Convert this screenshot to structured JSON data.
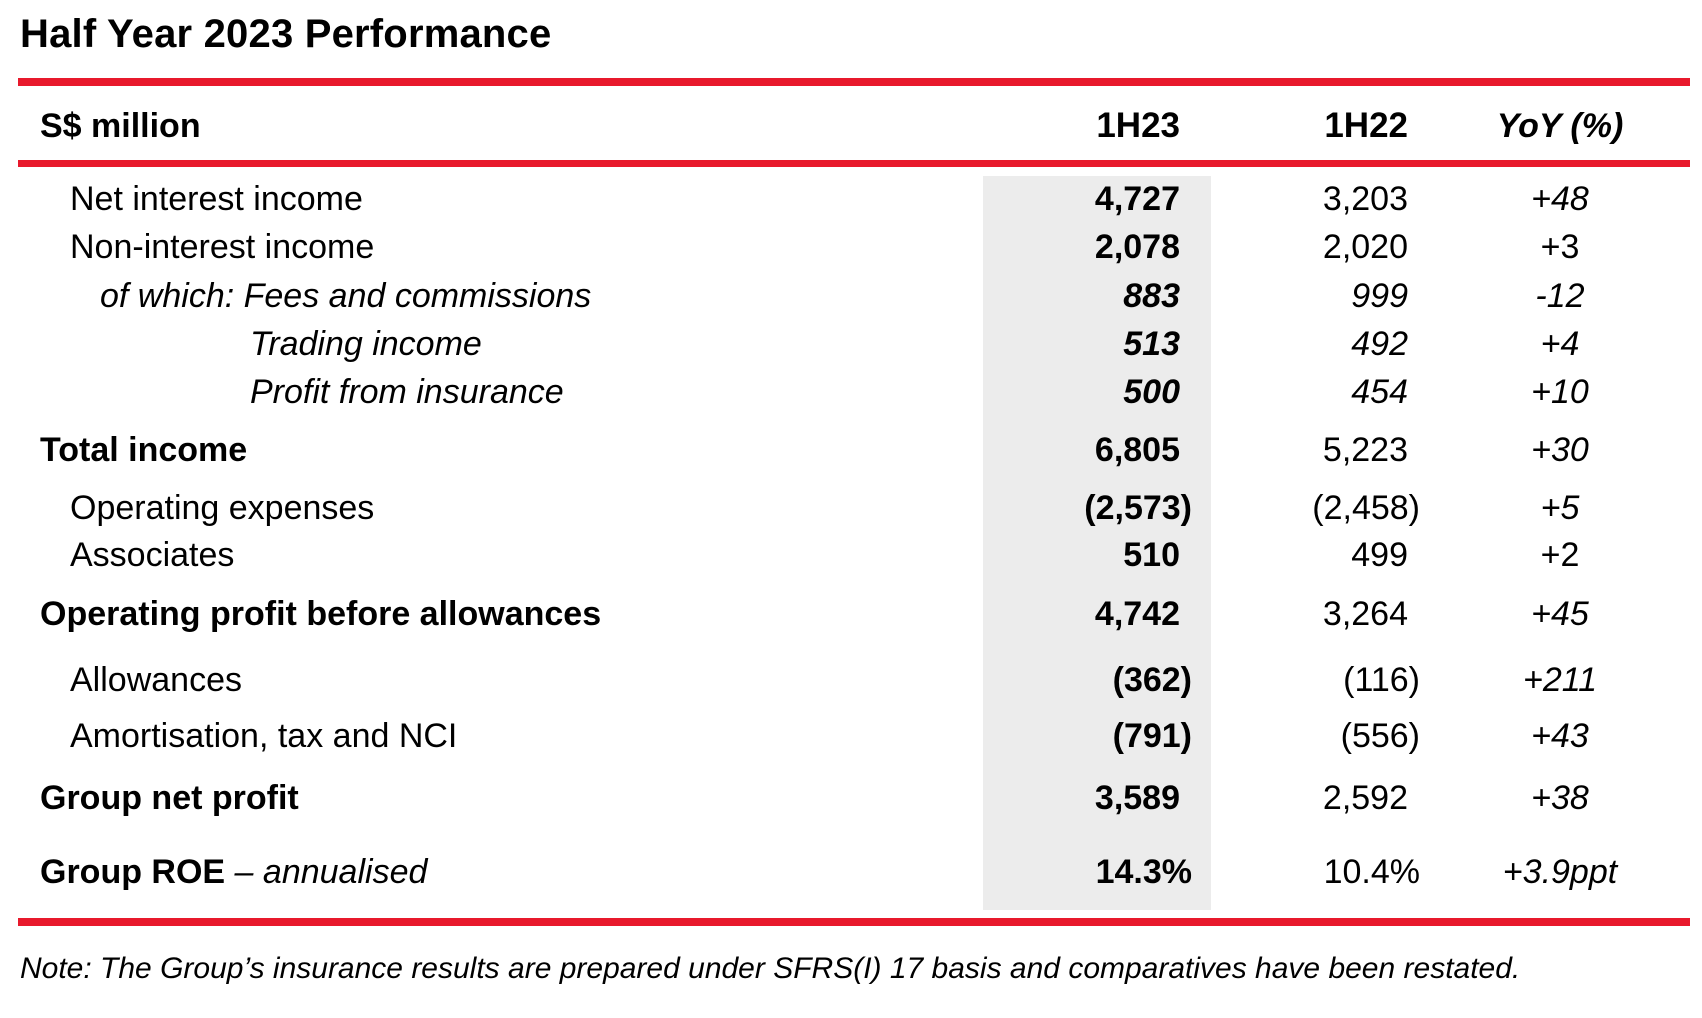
{
  "title": "Half Year 2023 Performance",
  "header": {
    "label": "S$ million",
    "col1": "1H23",
    "col2": "1H22",
    "col3": "YoY (%)"
  },
  "rows": [
    {
      "label": "Net interest income",
      "h23": "4,727",
      "h22": "3,203",
      "yoy": "+48"
    },
    {
      "label": "Non-interest income",
      "h23": "2,078",
      "h22": "2,020",
      "yoy": "+3"
    },
    {
      "label": "of which: Fees and commissions",
      "h23": "883",
      "h22": "999",
      "yoy": "-12"
    },
    {
      "label": "Trading income",
      "h23": "513",
      "h22": "492",
      "yoy": "+4"
    },
    {
      "label": "Profit from insurance",
      "h23": "500",
      "h22": "454",
      "yoy": "+10"
    },
    {
      "label": "Total income",
      "h23": "6,805",
      "h22": "5,223",
      "yoy": "+30"
    },
    {
      "label": "Operating expenses",
      "h23": "(2,573)",
      "h22": "(2,458)",
      "yoy": "+5"
    },
    {
      "label": "Associates",
      "h23": "510",
      "h22": "499",
      "yoy": "+2"
    },
    {
      "label": "Operating profit before allowances",
      "h23": "4,742",
      "h22": "3,264",
      "yoy": "+45"
    },
    {
      "label": "Allowances",
      "h23": "(362)",
      "h22": "(116)",
      "yoy": "+211"
    },
    {
      "label": "Amortisation, tax and NCI",
      "h23": "(791)",
      "h22": "(556)",
      "yoy": "+43"
    },
    {
      "label": "Group net profit",
      "h23": "3,589",
      "h22": "2,592",
      "yoy": "+38"
    },
    {
      "label": "Group ROE",
      "label_suffix": " – annualised",
      "h23": "14.3%",
      "h22": "10.4%",
      "yoy": "+3.9ppt"
    }
  ],
  "note": "Note: The Group’s insurance results are prepared under SFRS(I) 17 basis and comparatives have been restated.",
  "colors": {
    "accent_red": "#e8192c",
    "shade_grey": "#ececec"
  }
}
